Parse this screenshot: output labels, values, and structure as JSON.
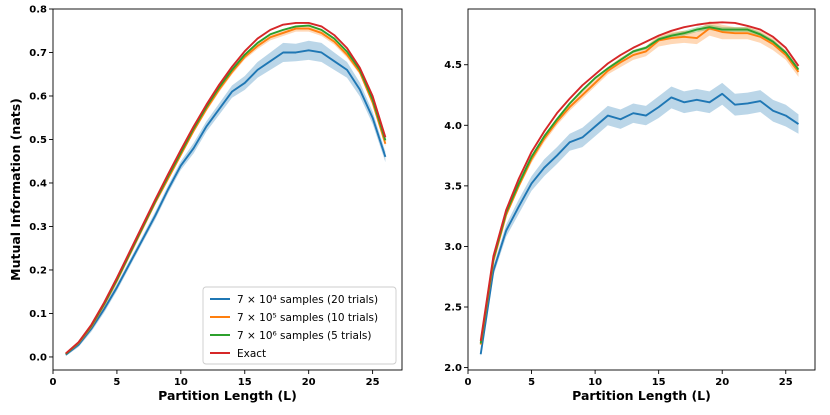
{
  "chart_data": [
    {
      "type": "line",
      "xlabel": "Partition Length (L)",
      "ylabel": "Mutual Information (nats)",
      "xlim": [
        0,
        27.3
      ],
      "ylim": [
        -0.03,
        0.8
      ],
      "xticks": [
        0,
        5,
        10,
        15,
        20,
        25
      ],
      "yticks": [
        0.0,
        0.1,
        0.2,
        0.3,
        0.4,
        0.5,
        0.6,
        0.7,
        0.8
      ],
      "ytick_labels": [
        "0.0",
        "0.1",
        "0.2",
        "0.3",
        "0.4",
        "0.5",
        "0.6",
        "0.7",
        "0.8"
      ],
      "legend_position": "lower-right",
      "x": [
        1,
        2,
        3,
        4,
        5,
        6,
        7,
        8,
        9,
        10,
        11,
        12,
        13,
        14,
        15,
        16,
        17,
        18,
        19,
        20,
        21,
        22,
        23,
        24,
        25,
        26
      ],
      "series": [
        {
          "name": "7 × 10⁴ samples (20 trials)",
          "color": "#1f77b4",
          "values": [
            0.005,
            0.028,
            0.065,
            0.11,
            0.16,
            0.215,
            0.27,
            0.325,
            0.385,
            0.44,
            0.48,
            0.53,
            0.57,
            0.61,
            0.63,
            0.66,
            0.68,
            0.7,
            0.7,
            0.705,
            0.7,
            0.68,
            0.66,
            0.615,
            0.55,
            0.46
          ],
          "band": [
            0.003,
            0.005,
            0.007,
            0.008,
            0.008,
            0.008,
            0.008,
            0.009,
            0.009,
            0.01,
            0.012,
            0.012,
            0.013,
            0.014,
            0.016,
            0.018,
            0.02,
            0.022,
            0.02,
            0.022,
            0.022,
            0.02,
            0.018,
            0.016,
            0.014,
            0.012
          ]
        },
        {
          "name": "7 × 10⁵ samples (10 trials)",
          "color": "#ff7f0e",
          "values": [
            0.007,
            0.032,
            0.07,
            0.12,
            0.175,
            0.235,
            0.295,
            0.355,
            0.41,
            0.465,
            0.52,
            0.57,
            0.615,
            0.655,
            0.69,
            0.715,
            0.735,
            0.745,
            0.755,
            0.755,
            0.745,
            0.725,
            0.695,
            0.655,
            0.585,
            0.49
          ],
          "band": [
            0.002,
            0.003,
            0.003,
            0.004,
            0.004,
            0.004,
            0.005,
            0.005,
            0.005,
            0.005,
            0.005,
            0.006,
            0.006,
            0.006,
            0.006,
            0.007,
            0.007,
            0.007,
            0.007,
            0.007,
            0.007,
            0.007,
            0.007,
            0.006,
            0.006,
            0.006
          ]
        },
        {
          "name": "7 × 10⁶ samples (5 trials)",
          "color": "#2ca02c",
          "values": [
            0.007,
            0.033,
            0.072,
            0.122,
            0.178,
            0.238,
            0.298,
            0.358,
            0.415,
            0.47,
            0.525,
            0.575,
            0.62,
            0.66,
            0.695,
            0.722,
            0.742,
            0.752,
            0.76,
            0.762,
            0.752,
            0.732,
            0.702,
            0.66,
            0.592,
            0.498
          ],
          "band": [
            0.001,
            0.001,
            0.001,
            0.002,
            0.002,
            0.002,
            0.002,
            0.002,
            0.002,
            0.002,
            0.002,
            0.002,
            0.002,
            0.002,
            0.002,
            0.002,
            0.002,
            0.002,
            0.002,
            0.002,
            0.002,
            0.002,
            0.002,
            0.002,
            0.002,
            0.002
          ]
        },
        {
          "name": "Exact",
          "color": "#d62728",
          "values": [
            0.008,
            0.034,
            0.074,
            0.125,
            0.182,
            0.242,
            0.302,
            0.362,
            0.42,
            0.476,
            0.53,
            0.58,
            0.626,
            0.667,
            0.703,
            0.732,
            0.752,
            0.764,
            0.768,
            0.768,
            0.76,
            0.74,
            0.71,
            0.665,
            0.6,
            0.505
          ]
        }
      ]
    },
    {
      "type": "line",
      "xlabel": "Partition Length (L)",
      "ylabel": "",
      "xlim": [
        0,
        27.3
      ],
      "ylim": [
        1.98,
        4.96
      ],
      "xticks": [
        0,
        5,
        10,
        15,
        20,
        25
      ],
      "yticks": [
        2.0,
        2.5,
        3.0,
        3.5,
        4.0,
        4.5
      ],
      "ytick_labels": [
        "2.0",
        "2.5",
        "3.0",
        "3.5",
        "4.0",
        "4.5"
      ],
      "x": [
        1,
        2,
        3,
        4,
        5,
        6,
        7,
        8,
        9,
        10,
        11,
        12,
        13,
        14,
        15,
        16,
        17,
        18,
        19,
        20,
        21,
        22,
        23,
        24,
        25,
        26
      ],
      "series": [
        {
          "name": "7 × 10⁴ samples (20 trials)",
          "color": "#1f77b4",
          "values": [
            2.11,
            2.8,
            3.13,
            3.33,
            3.52,
            3.65,
            3.75,
            3.86,
            3.9,
            3.99,
            4.08,
            4.05,
            4.1,
            4.08,
            4.15,
            4.23,
            4.19,
            4.21,
            4.19,
            4.26,
            4.17,
            4.18,
            4.2,
            4.12,
            4.08,
            4.01
          ],
          "band": [
            0.02,
            0.04,
            0.05,
            0.06,
            0.06,
            0.07,
            0.07,
            0.07,
            0.08,
            0.08,
            0.08,
            0.08,
            0.08,
            0.08,
            0.09,
            0.09,
            0.09,
            0.09,
            0.09,
            0.09,
            0.09,
            0.09,
            0.09,
            0.09,
            0.09,
            0.08
          ]
        },
        {
          "name": "7 × 10⁵ samples (10 trials)",
          "color": "#ff7f0e",
          "values": [
            2.19,
            2.88,
            3.26,
            3.5,
            3.72,
            3.89,
            4.03,
            4.15,
            4.25,
            4.35,
            4.45,
            4.52,
            4.58,
            4.61,
            4.7,
            4.72,
            4.73,
            4.72,
            4.8,
            4.77,
            4.76,
            4.76,
            4.73,
            4.67,
            4.58,
            4.44
          ],
          "band": [
            0.01,
            0.02,
            0.02,
            0.02,
            0.03,
            0.03,
            0.03,
            0.03,
            0.03,
            0.03,
            0.03,
            0.04,
            0.04,
            0.04,
            0.05,
            0.05,
            0.05,
            0.05,
            0.06,
            0.06,
            0.05,
            0.05,
            0.05,
            0.05,
            0.04,
            0.04
          ]
        },
        {
          "name": "7 × 10⁶ samples (5 trials)",
          "color": "#2ca02c",
          "values": [
            2.2,
            2.9,
            3.28,
            3.52,
            3.74,
            3.91,
            4.05,
            4.18,
            4.29,
            4.39,
            4.47,
            4.54,
            4.61,
            4.64,
            4.71,
            4.74,
            4.76,
            4.79,
            4.81,
            4.79,
            4.79,
            4.79,
            4.75,
            4.69,
            4.6,
            4.46
          ],
          "band": [
            0.005,
            0.005,
            0.006,
            0.006,
            0.007,
            0.007,
            0.008,
            0.008,
            0.008,
            0.008,
            0.01,
            0.01,
            0.012,
            0.014,
            0.016,
            0.018,
            0.02,
            0.02,
            0.022,
            0.022,
            0.02,
            0.02,
            0.018,
            0.016,
            0.014,
            0.012
          ]
        },
        {
          "name": "Exact",
          "color": "#d62728",
          "values": [
            2.22,
            2.92,
            3.3,
            3.56,
            3.78,
            3.95,
            4.1,
            4.22,
            4.33,
            4.42,
            4.51,
            4.58,
            4.64,
            4.69,
            4.74,
            4.78,
            4.81,
            4.83,
            4.845,
            4.85,
            4.845,
            4.82,
            4.79,
            4.73,
            4.64,
            4.49
          ]
        }
      ]
    }
  ],
  "legend": {
    "entries": [
      {
        "label": "7 × 10⁴ samples (20 trials)",
        "color": "#1f77b4"
      },
      {
        "label": "7 × 10⁵ samples (10 trials)",
        "color": "#ff7f0e"
      },
      {
        "label": "7 × 10⁶ samples (5 trials)",
        "color": "#2ca02c"
      },
      {
        "label": "Exact",
        "color": "#d62728"
      }
    ]
  }
}
